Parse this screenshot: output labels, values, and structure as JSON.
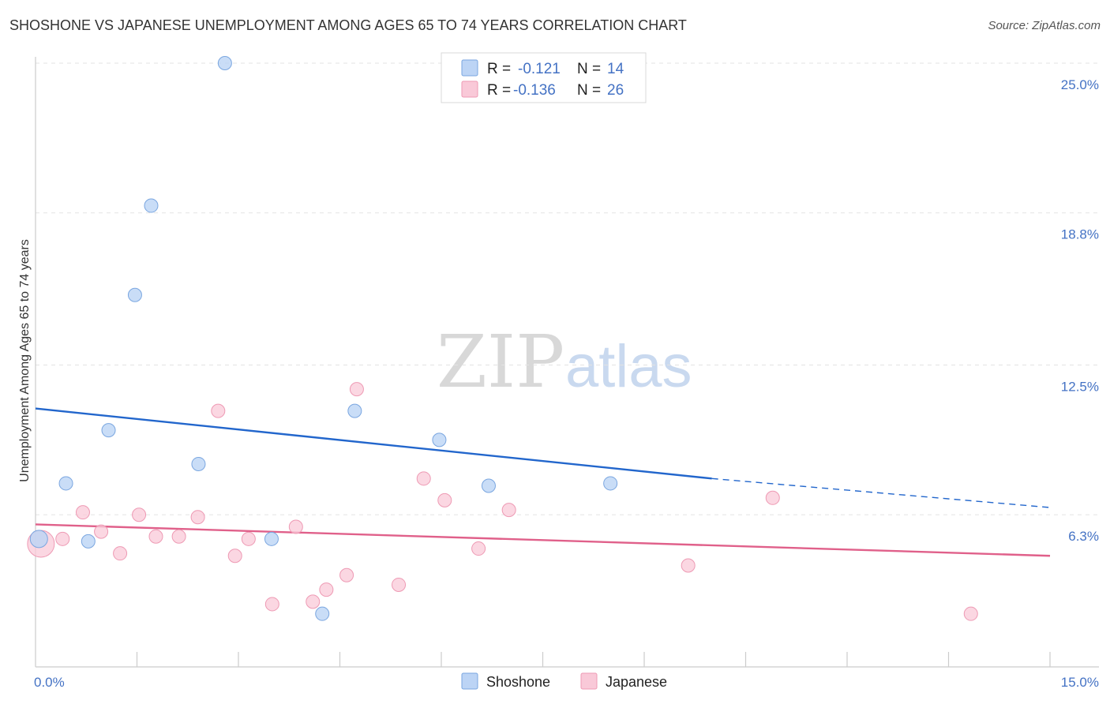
{
  "header": {
    "title": "SHOSHONE VS JAPANESE UNEMPLOYMENT AMONG AGES 65 TO 74 YEARS CORRELATION CHART",
    "source": "Source: ZipAtlas.com"
  },
  "watermark": {
    "part1": "ZIP",
    "part2": "atlas"
  },
  "colors": {
    "shoshone_fill": "#bcd4f5",
    "shoshone_stroke": "#7aa6e0",
    "shoshone_line": "#2266cc",
    "japanese_fill": "#f9c9d8",
    "japanese_stroke": "#ee9ab4",
    "japanese_line": "#e0608a",
    "tick_label": "#4472c4"
  },
  "legend": {
    "shoshone": {
      "r_label": "R = ",
      "r_value": "-0.121",
      "n_label": "N = ",
      "n_value": "14"
    },
    "japanese": {
      "r_label": "R = ",
      "r_value": "-0.136",
      "n_label": "N = ",
      "n_value": "26"
    }
  },
  "chart_data": {
    "type": "scatter",
    "title": "SHOSHONE VS JAPANESE UNEMPLOYMENT AMONG AGES 65 TO 74 YEARS CORRELATION CHART",
    "xlabel": "",
    "ylabel": "Unemployment Among Ages 65 to 74 years",
    "xlim": [
      0,
      15
    ],
    "ylim": [
      0,
      25
    ],
    "x_tick_labels": [
      {
        "value": 0,
        "label": "0.0%"
      },
      {
        "value": 15,
        "label": "15.0%"
      }
    ],
    "y_tick_labels": [
      {
        "value": 6.3,
        "label": "6.3%"
      },
      {
        "value": 12.5,
        "label": "12.5%"
      },
      {
        "value": 18.8,
        "label": "18.8%"
      },
      {
        "value": 25.0,
        "label": "25.0%"
      }
    ],
    "series": [
      {
        "name": "Shoshone",
        "points": [
          {
            "x": 0.05,
            "y": 5.3
          },
          {
            "x": 0.45,
            "y": 7.6
          },
          {
            "x": 0.78,
            "y": 5.2
          },
          {
            "x": 1.08,
            "y": 9.8
          },
          {
            "x": 1.47,
            "y": 15.4
          },
          {
            "x": 1.71,
            "y": 19.1
          },
          {
            "x": 2.41,
            "y": 8.4
          },
          {
            "x": 2.8,
            "y": 25.0
          },
          {
            "x": 3.49,
            "y": 5.3
          },
          {
            "x": 4.24,
            "y": 2.2
          },
          {
            "x": 4.72,
            "y": 10.6
          },
          {
            "x": 5.97,
            "y": 9.4
          },
          {
            "x": 6.7,
            "y": 7.5
          },
          {
            "x": 8.5,
            "y": 7.6
          }
        ],
        "trend": {
          "x0": 0,
          "y0": 10.7,
          "x1": 10.0,
          "y1": 7.8,
          "x_dash_end": 15.0,
          "y_dash_end": 6.6
        }
      },
      {
        "name": "Japanese",
        "points": [
          {
            "x": 0.08,
            "y": 5.1
          },
          {
            "x": 0.4,
            "y": 5.3
          },
          {
            "x": 0.7,
            "y": 6.4
          },
          {
            "x": 0.97,
            "y": 5.6
          },
          {
            "x": 1.25,
            "y": 4.7
          },
          {
            "x": 1.53,
            "y": 6.3
          },
          {
            "x": 1.78,
            "y": 5.4
          },
          {
            "x": 2.12,
            "y": 5.4
          },
          {
            "x": 2.4,
            "y": 6.2
          },
          {
            "x": 2.7,
            "y": 10.6
          },
          {
            "x": 2.95,
            "y": 4.6
          },
          {
            "x": 3.15,
            "y": 5.3
          },
          {
            "x": 3.5,
            "y": 2.6
          },
          {
            "x": 3.85,
            "y": 5.8
          },
          {
            "x": 4.1,
            "y": 2.7
          },
          {
            "x": 4.3,
            "y": 3.2
          },
          {
            "x": 4.6,
            "y": 3.8
          },
          {
            "x": 4.75,
            "y": 11.5
          },
          {
            "x": 5.37,
            "y": 3.4
          },
          {
            "x": 5.74,
            "y": 7.8
          },
          {
            "x": 6.05,
            "y": 6.9
          },
          {
            "x": 6.55,
            "y": 4.9
          },
          {
            "x": 7.0,
            "y": 6.5
          },
          {
            "x": 9.65,
            "y": 4.2
          },
          {
            "x": 10.9,
            "y": 7.0
          },
          {
            "x": 13.83,
            "y": 2.2
          }
        ],
        "trend": {
          "x0": 0,
          "y0": 5.9,
          "x1": 15.0,
          "y1": 4.6
        }
      }
    ],
    "grid": true,
    "legend_position": "top-center"
  }
}
